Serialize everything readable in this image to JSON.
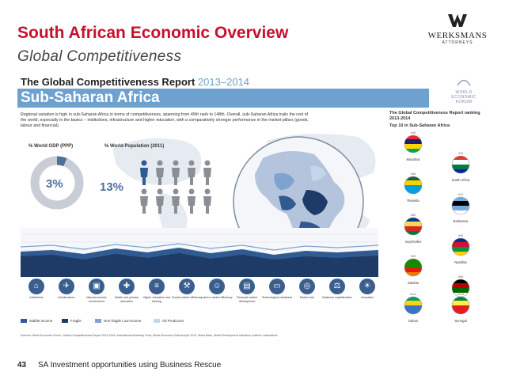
{
  "slide": {
    "title": "South African Economic Overview",
    "subtitle": "Global Competitiveness"
  },
  "logo": {
    "name": "WERKSMANS",
    "sub": "ATTORNEYS"
  },
  "infographic": {
    "title": "The Global Competitiveness Report",
    "years": "2013–2014",
    "region": "Sub-Saharan Africa",
    "wef_lines": [
      "WORLD",
      "ECONOMIC",
      "FORUM"
    ],
    "description": "Regional variation is high in sub-Saharan Africa in terms of competitiveness, spanning from 45th rank to 148th. Overall, sub-Saharan Africa trails the rest of the world, especially in the basics – institutions, infrastructure and higher education, with a comparatively stronger performance in the market pillars (goods, labour and financial).",
    "gdp_label": "% World GDP (PPP)",
    "gdp_value": "3%",
    "pop_label": "% World Population (2011)",
    "pop_value": "13%",
    "gdp_share": 0.03,
    "pop_share": 0.13,
    "pillars": [
      {
        "label": "Institutions",
        "icon": "pillar-institutions-icon",
        "glyph": "⌂"
      },
      {
        "label": "Infrastructure",
        "icon": "pillar-infrastructure-icon",
        "glyph": "✈"
      },
      {
        "label": "Macroeconomic environment",
        "icon": "pillar-macro-icon",
        "glyph": "▣"
      },
      {
        "label": "Health and primary education",
        "icon": "pillar-health-icon",
        "glyph": "✚"
      },
      {
        "label": "Higher education and training",
        "icon": "pillar-education-icon",
        "glyph": "≡"
      },
      {
        "label": "Goods market efficiency",
        "icon": "pillar-goods-icon",
        "glyph": "⚒"
      },
      {
        "label": "Labour market efficiency",
        "icon": "pillar-labour-icon",
        "glyph": "☺"
      },
      {
        "label": "Financial market development",
        "icon": "pillar-financial-icon",
        "glyph": "▤"
      },
      {
        "label": "Technological readiness",
        "icon": "pillar-tech-icon",
        "glyph": "▭"
      },
      {
        "label": "Market size",
        "icon": "pillar-market-icon",
        "glyph": "◎"
      },
      {
        "label": "Business sophistication",
        "icon": "pillar-business-icon",
        "glyph": "⚖"
      },
      {
        "label": "Innovation",
        "icon": "pillar-innovation-icon",
        "glyph": "☀"
      }
    ],
    "legend": [
      {
        "label": "Middle-income",
        "color": "#2f5a92"
      },
      {
        "label": "Fragile",
        "color": "#1d3b66"
      },
      {
        "label": "Non-fragile Low-income",
        "color": "#7fa3cf"
      },
      {
        "label": "Oil Producers",
        "color": "#c6d6ea"
      }
    ],
    "source": "Sources: World Economic Forum, Global Competitiveness Report 2013-2014; International Monetary Fund, World Economic Outlook April 2013; World Bank, World Development Indicators; authors' calculations.",
    "top10_title": "The Global Competitiveness Report ranking 2013-2014",
    "top10_sub": "Top 10 in Sub-Saharan Africa",
    "flags": [
      {
        "name": "Mauritius",
        "rank": "#45",
        "col": 0
      },
      {
        "name": "South Africa",
        "rank": "#53",
        "col": 1
      },
      {
        "name": "Rwanda",
        "rank": "#66",
        "col": 0
      },
      {
        "name": "Botswana",
        "rank": "#74",
        "col": 1
      },
      {
        "name": "Seychelles",
        "rank": "#80",
        "col": 0
      },
      {
        "name": "Namibia",
        "rank": "#90",
        "col": 1
      },
      {
        "name": "Zambia",
        "rank": "#93",
        "col": 0
      },
      {
        "name": "Kenya",
        "rank": "#96",
        "col": 1
      },
      {
        "name": "Gabon",
        "rank": "#112",
        "col": 0
      },
      {
        "name": "Senegal",
        "rank": "#113",
        "col": 1
      }
    ]
  },
  "footer": {
    "page": "43",
    "text": "SA Investment opportunities using Business Rescue"
  }
}
